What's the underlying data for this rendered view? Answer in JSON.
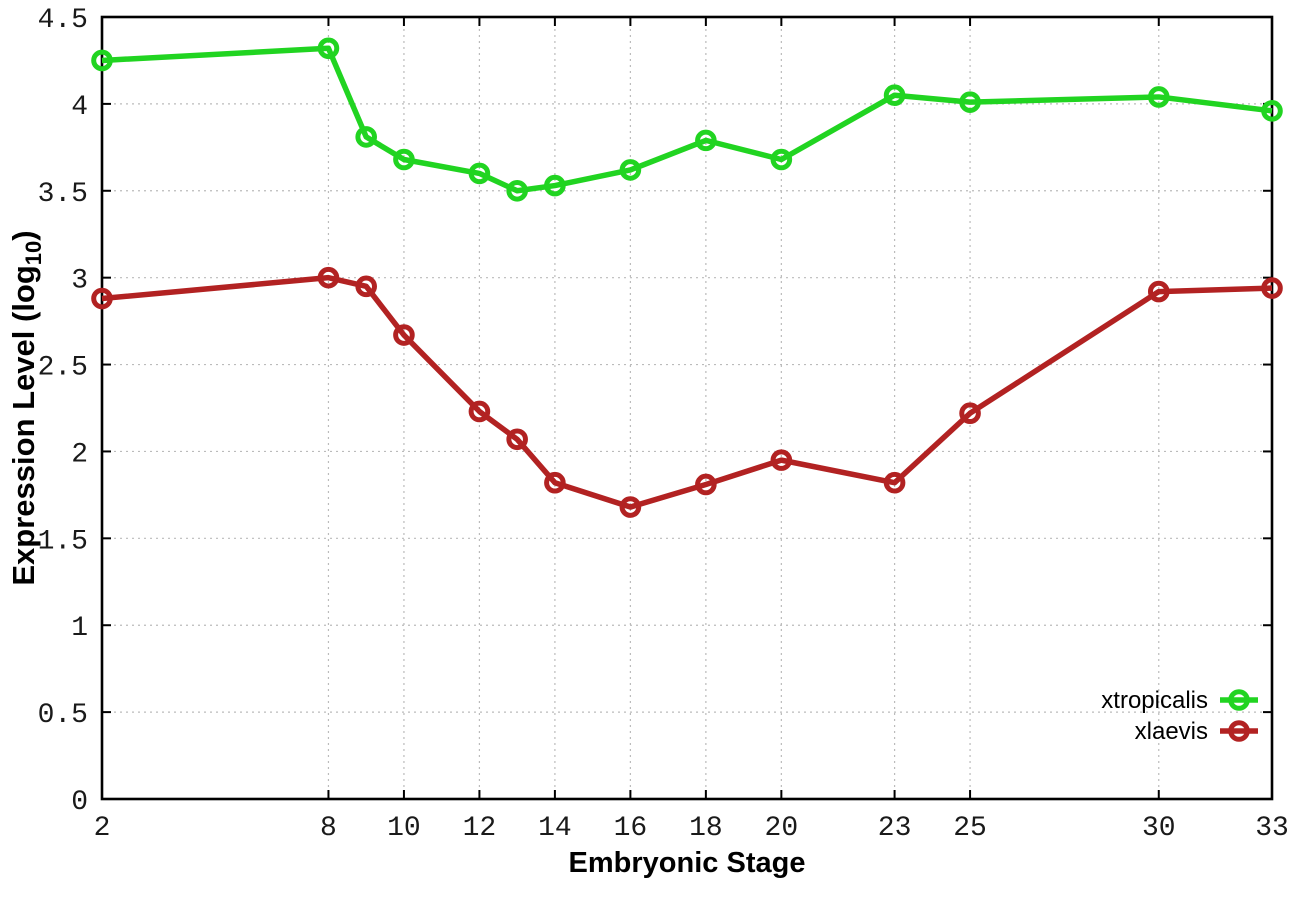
{
  "chart_data": {
    "type": "line",
    "title": "",
    "xlabel": "Embryonic Stage",
    "ylabel": "Expression Level (log10)",
    "ylabel_parts": {
      "prefix": "Expression Level (log",
      "subscript": "10",
      "suffix": ")"
    },
    "xlim": [
      2,
      33
    ],
    "ylim": [
      0,
      4.5
    ],
    "x_ticks": [
      2,
      8,
      10,
      12,
      14,
      16,
      18,
      20,
      23,
      25,
      30,
      33
    ],
    "x_tick_labels": [
      "2",
      "8",
      "10",
      "12",
      "14",
      "16",
      "18",
      "20",
      "23",
      "25",
      "30",
      "33"
    ],
    "y_ticks": [
      0,
      0.5,
      1,
      1.5,
      2,
      2.5,
      3,
      3.5,
      4,
      4.5
    ],
    "y_tick_labels": [
      "0",
      "0.5",
      "1",
      "1.5",
      "2",
      "2.5",
      "3",
      "3.5",
      "4",
      "4.5"
    ],
    "grid": true,
    "legend": {
      "position": "inside-bottom-right",
      "entries": [
        "xtropicalis",
        "xlaevis"
      ]
    },
    "x": [
      2,
      8,
      9,
      10,
      12,
      13,
      14,
      16,
      18,
      20,
      23,
      25,
      30,
      33
    ],
    "series": [
      {
        "name": "xtropicalis",
        "color": "#21d421",
        "values": [
          4.25,
          4.32,
          3.81,
          3.68,
          3.6,
          3.5,
          3.53,
          3.62,
          3.79,
          3.68,
          4.05,
          4.01,
          4.04,
          3.96
        ]
      },
      {
        "name": "xlaevis",
        "color": "#b22222",
        "values": [
          2.88,
          3.0,
          2.95,
          2.67,
          2.23,
          2.07,
          1.82,
          1.68,
          1.81,
          1.95,
          1.82,
          2.22,
          2.92,
          2.94
        ]
      }
    ],
    "colors": {
      "background": "#ffffff",
      "grid": "#bbbbbb",
      "axis": "#000000",
      "tick_label": "#1a1a1a"
    }
  }
}
